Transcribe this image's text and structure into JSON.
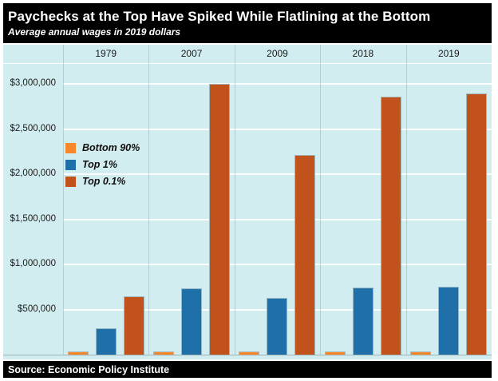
{
  "chart_data": {
    "type": "bar",
    "title": "Paychecks at the Top Have Spiked While Flatlining at the Bottom",
    "subtitle": "Average annual wages in 2019 dollars",
    "source_label": "Source: Economic Policy Institute",
    "categories": [
      "1979",
      "2007",
      "2009",
      "2018",
      "2019"
    ],
    "series": [
      {
        "name": "Bottom 90%",
        "color": "#F6872B",
        "values": [
          31000,
          36000,
          36000,
          38000,
          39000
        ]
      },
      {
        "name": "Top 1%",
        "color": "#1F70A8",
        "values": [
          290000,
          735000,
          630000,
          745000,
          755000
        ]
      },
      {
        "name": "Top 0.1%",
        "color": "#C2521C",
        "values": [
          650000,
          3000000,
          2210000,
          2860000,
          2890000
        ]
      }
    ],
    "y_ticks": [
      {
        "value": 500000,
        "label": "$500,000"
      },
      {
        "value": 1000000,
        "label": "$1,000,000"
      },
      {
        "value": 1500000,
        "label": "$1,500,000"
      },
      {
        "value": 2000000,
        "label": "$2,000,000"
      },
      {
        "value": 2500000,
        "label": "$2,500,000"
      },
      {
        "value": 3000000,
        "label": "$3,000,000"
      }
    ],
    "ylim": [
      0,
      3230000
    ],
    "grid": true,
    "legend_position": "inside-upper-left",
    "colors": {
      "plot_background": "#D2EDF0",
      "header_background": "#000000",
      "header_text": "#FFFFFF",
      "gridline": "#FFFFFF",
      "axis_text": "#1A1A1A"
    }
  }
}
